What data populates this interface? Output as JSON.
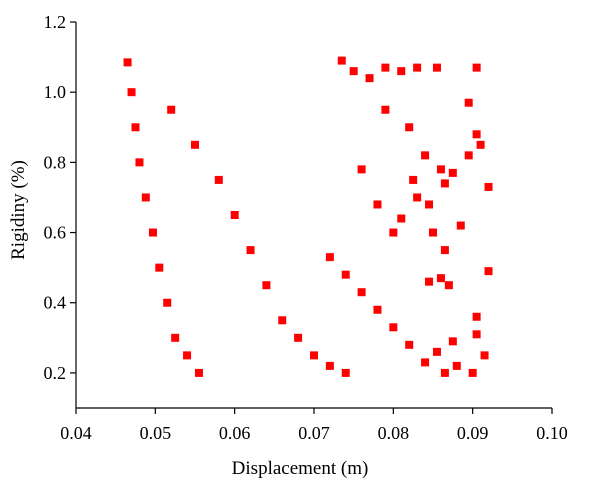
{
  "chart_data": {
    "type": "scatter",
    "xlabel": "Displacement (m)",
    "ylabel": "Rigidiny (%)",
    "xlim": [
      0.04,
      0.1
    ],
    "ylim": [
      0.1,
      1.2
    ],
    "x_ticks": [
      "0.04",
      "0.05",
      "0.06",
      "0.07",
      "0.08",
      "0.09",
      "0.10"
    ],
    "y_ticks": [
      "0.2",
      "0.4",
      "0.6",
      "0.8",
      "1.0",
      "1.2"
    ],
    "marker": "square",
    "color": "#ff0000",
    "grid": false,
    "legend": "none",
    "points": [
      [
        0.0465,
        1.085
      ],
      [
        0.047,
        1.0
      ],
      [
        0.0475,
        0.9
      ],
      [
        0.048,
        0.8
      ],
      [
        0.0488,
        0.7
      ],
      [
        0.0497,
        0.6
      ],
      [
        0.0505,
        0.5
      ],
      [
        0.0515,
        0.4
      ],
      [
        0.0525,
        0.3
      ],
      [
        0.054,
        0.25
      ],
      [
        0.0555,
        0.2
      ],
      [
        0.052,
        0.95
      ],
      [
        0.055,
        0.85
      ],
      [
        0.058,
        0.75
      ],
      [
        0.06,
        0.65
      ],
      [
        0.062,
        0.55
      ],
      [
        0.064,
        0.45
      ],
      [
        0.066,
        0.35
      ],
      [
        0.068,
        0.3
      ],
      [
        0.07,
        0.25
      ],
      [
        0.072,
        0.22
      ],
      [
        0.074,
        0.2
      ],
      [
        0.0735,
        1.09
      ],
      [
        0.075,
        1.06
      ],
      [
        0.077,
        1.04
      ],
      [
        0.079,
        1.07
      ],
      [
        0.081,
        1.06
      ],
      [
        0.083,
        1.07
      ],
      [
        0.0855,
        1.07
      ],
      [
        0.0905,
        1.07
      ],
      [
        0.0895,
        0.97
      ],
      [
        0.0905,
        0.88
      ],
      [
        0.091,
        0.85
      ],
      [
        0.0895,
        0.82
      ],
      [
        0.0875,
        0.77
      ],
      [
        0.092,
        0.73
      ],
      [
        0.0865,
        0.74
      ],
      [
        0.0885,
        0.62
      ],
      [
        0.0865,
        0.55
      ],
      [
        0.087,
        0.45
      ],
      [
        0.092,
        0.49
      ],
      [
        0.086,
        0.47
      ],
      [
        0.0845,
        0.46
      ],
      [
        0.0905,
        0.36
      ],
      [
        0.0905,
        0.31
      ],
      [
        0.0915,
        0.25
      ],
      [
        0.0875,
        0.29
      ],
      [
        0.0855,
        0.26
      ],
      [
        0.088,
        0.22
      ],
      [
        0.09,
        0.2
      ],
      [
        0.0865,
        0.2
      ],
      [
        0.084,
        0.23
      ],
      [
        0.082,
        0.28
      ],
      [
        0.08,
        0.33
      ],
      [
        0.078,
        0.38
      ],
      [
        0.076,
        0.43
      ],
      [
        0.074,
        0.48
      ],
      [
        0.072,
        0.53
      ],
      [
        0.08,
        0.6
      ],
      [
        0.078,
        0.68
      ],
      [
        0.076,
        0.78
      ],
      [
        0.082,
        0.9
      ],
      [
        0.079,
        0.95
      ],
      [
        0.084,
        0.82
      ],
      [
        0.083,
        0.7
      ],
      [
        0.081,
        0.64
      ],
      [
        0.085,
        0.6
      ],
      [
        0.0845,
        0.68
      ],
      [
        0.086,
        0.78
      ],
      [
        0.0825,
        0.75
      ]
    ]
  }
}
